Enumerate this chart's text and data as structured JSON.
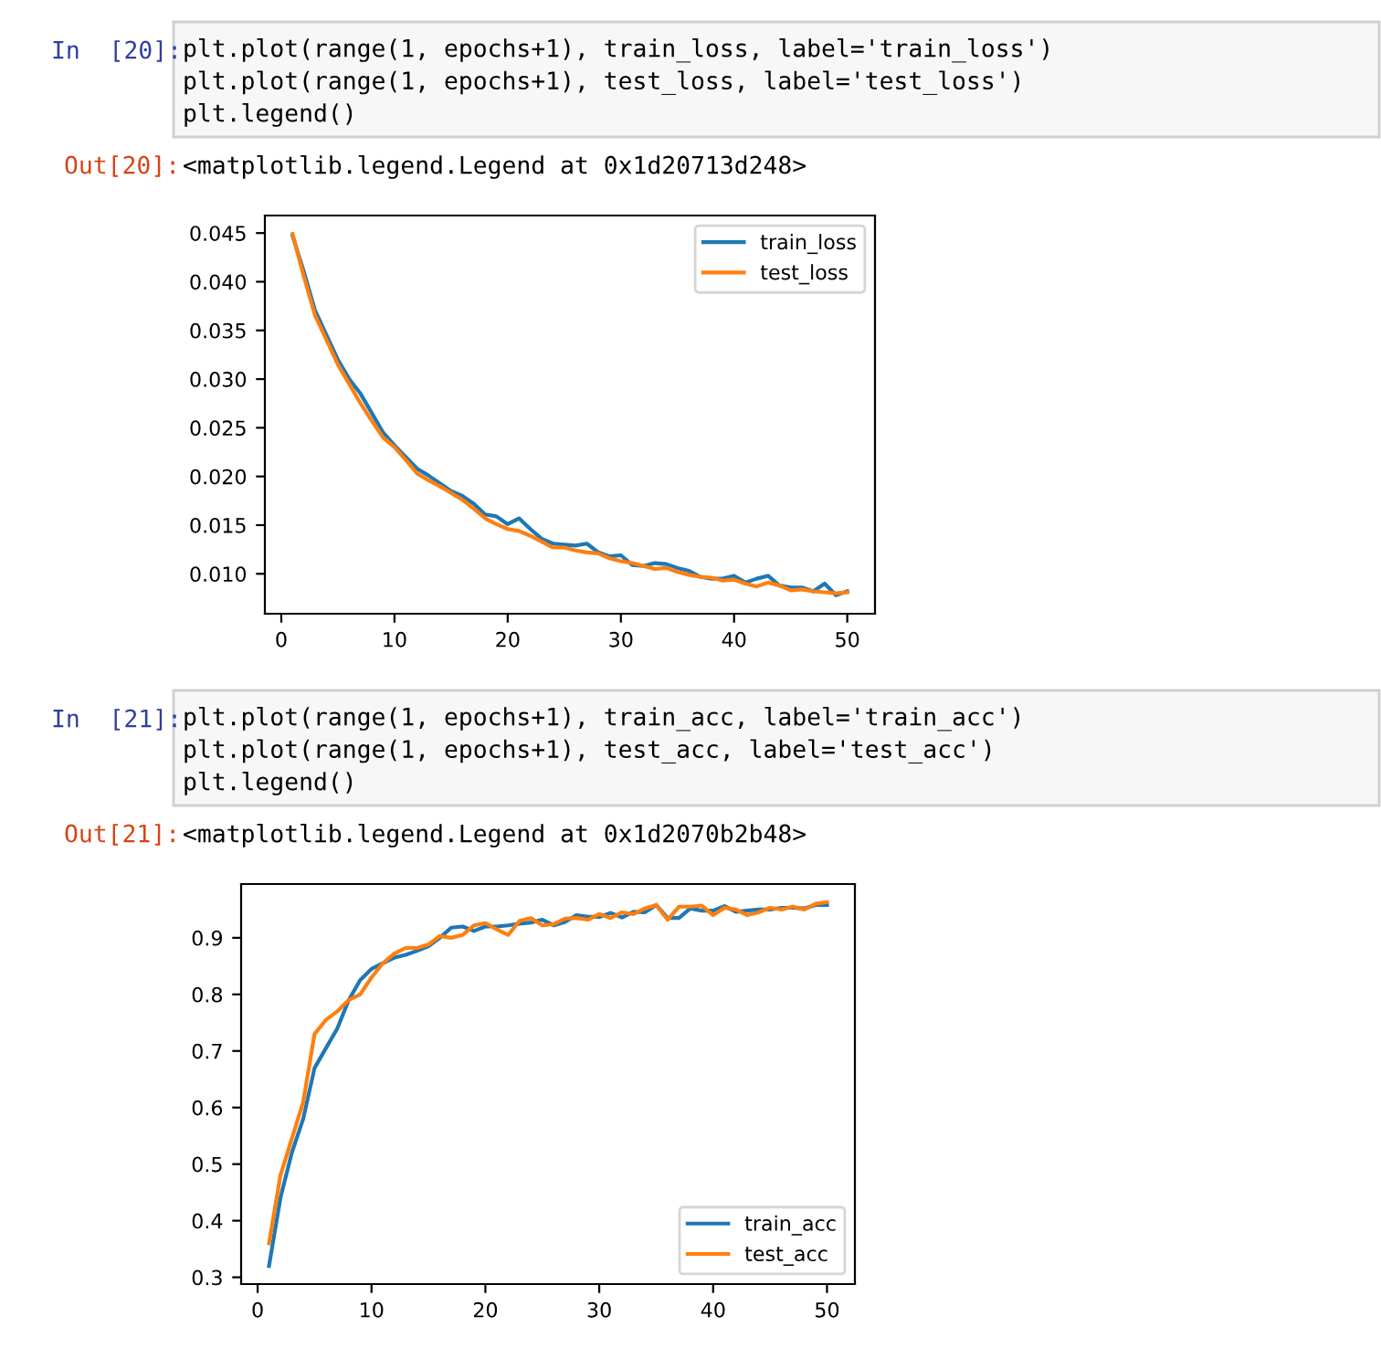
{
  "chart_data": [
    {
      "type": "line",
      "annotations": [
        "In  [20]:",
        "plt.plot(range(1, epochs+1), train_loss, label='train_loss')\nplt.plot(range(1, epochs+1), test_loss, label='test_loss')\nplt.legend()",
        "Out[20]:",
        "<matplotlib.legend.Legend at 0x1d20713d248>"
      ],
      "x": [
        1,
        2,
        3,
        4,
        5,
        6,
        7,
        8,
        9,
        10,
        11,
        12,
        13,
        14,
        15,
        16,
        17,
        18,
        19,
        20,
        21,
        22,
        23,
        24,
        25,
        26,
        27,
        28,
        29,
        30,
        31,
        32,
        33,
        34,
        35,
        36,
        37,
        38,
        39,
        40,
        41,
        42,
        43,
        44,
        45,
        46,
        47,
        48,
        49,
        50
      ],
      "xlim": [
        -1.45,
        52.45
      ],
      "xticks": [
        0,
        10,
        20,
        30,
        40,
        50
      ],
      "ylim": [
        0.0059,
        0.0468
      ],
      "yticks": [
        {
          "value": 0.01,
          "label": "0.010"
        },
        {
          "value": 0.015,
          "label": "0.015"
        },
        {
          "value": 0.02,
          "label": "0.020"
        },
        {
          "value": 0.025,
          "label": "0.025"
        },
        {
          "value": 0.03,
          "label": "0.030"
        },
        {
          "value": 0.035,
          "label": "0.035"
        },
        {
          "value": 0.04,
          "label": "0.040"
        },
        {
          "value": 0.045,
          "label": "0.045"
        }
      ],
      "legend": "top right",
      "grid": false,
      "series": [
        {
          "name": "train_loss",
          "color": "#1f77b4",
          "values": [
            0.0447,
            0.041,
            0.037,
            0.0345,
            0.032,
            0.03,
            0.0285,
            0.0265,
            0.0245,
            0.0232,
            0.022,
            0.0208,
            0.0201,
            0.0193,
            0.0185,
            0.018,
            0.0172,
            0.0161,
            0.0159,
            0.0151,
            0.0157,
            0.0146,
            0.0136,
            0.0131,
            0.013,
            0.0129,
            0.0131,
            0.0122,
            0.0118,
            0.0119,
            0.0109,
            0.0108,
            0.0111,
            0.011,
            0.0106,
            0.0103,
            0.0097,
            0.0095,
            0.0095,
            0.0098,
            0.0091,
            0.0095,
            0.0098,
            0.0088,
            0.0086,
            0.0086,
            0.0082,
            0.009,
            0.0078,
            0.0082
          ]
        },
        {
          "name": "test_loss",
          "color": "#ff7f0e",
          "values": [
            0.0449,
            0.0405,
            0.0365,
            0.034,
            0.0315,
            0.0295,
            0.0275,
            0.0257,
            0.024,
            0.023,
            0.0217,
            0.0203,
            0.0196,
            0.019,
            0.0183,
            0.0176,
            0.0167,
            0.0157,
            0.0151,
            0.0146,
            0.0144,
            0.0139,
            0.0133,
            0.0127,
            0.0127,
            0.0124,
            0.0122,
            0.0121,
            0.0116,
            0.0113,
            0.0111,
            0.0108,
            0.0105,
            0.0106,
            0.0102,
            0.0099,
            0.0097,
            0.0096,
            0.0093,
            0.0094,
            0.009,
            0.0087,
            0.0091,
            0.0088,
            0.0083,
            0.0084,
            0.0082,
            0.0081,
            0.008,
            0.0081
          ]
        }
      ]
    },
    {
      "type": "line",
      "annotations": [
        "In  [21]:",
        "plt.plot(range(1, epochs+1), train_acc, label='train_acc')\nplt.plot(range(1, epochs+1), test_acc, label='test_acc')\nplt.legend()",
        "Out[21]:",
        "<matplotlib.legend.Legend at 0x1d2070b2b48>"
      ],
      "x": [
        1,
        2,
        3,
        4,
        5,
        6,
        7,
        8,
        9,
        10,
        11,
        12,
        13,
        14,
        15,
        16,
        17,
        18,
        19,
        20,
        21,
        22,
        23,
        24,
        25,
        26,
        27,
        28,
        29,
        30,
        31,
        32,
        33,
        34,
        35,
        36,
        37,
        38,
        39,
        40,
        41,
        42,
        43,
        44,
        45,
        46,
        47,
        48,
        49,
        50
      ],
      "xlim": [
        -1.45,
        52.45
      ],
      "xticks": [
        0,
        10,
        20,
        30,
        40,
        50
      ],
      "ylim": [
        0.288,
        0.995
      ],
      "yticks": [
        0.3,
        0.4,
        0.5,
        0.6,
        0.7,
        0.8,
        0.9
      ],
      "legend": "bottom right",
      "grid": false,
      "series": [
        {
          "name": "train_acc",
          "color": "#1f77b4",
          "values": [
            0.32,
            0.44,
            0.52,
            0.58,
            0.67,
            0.705,
            0.74,
            0.79,
            0.825,
            0.845,
            0.855,
            0.865,
            0.87,
            0.877,
            0.885,
            0.9,
            0.918,
            0.92,
            0.912,
            0.92,
            0.92,
            0.922,
            0.925,
            0.927,
            0.932,
            0.922,
            0.928,
            0.94,
            0.937,
            0.937,
            0.944,
            0.936,
            0.946,
            0.945,
            0.958,
            0.935,
            0.935,
            0.952,
            0.948,
            0.948,
            0.956,
            0.946,
            0.948,
            0.95,
            0.95,
            0.953,
            0.953,
            0.952,
            0.958,
            0.958
          ]
        },
        {
          "name": "test_acc",
          "color": "#ff7f0e",
          "values": [
            0.36,
            0.48,
            0.545,
            0.61,
            0.73,
            0.755,
            0.77,
            0.79,
            0.8,
            0.83,
            0.855,
            0.872,
            0.882,
            0.882,
            0.888,
            0.903,
            0.9,
            0.905,
            0.922,
            0.926,
            0.915,
            0.905,
            0.93,
            0.935,
            0.922,
            0.924,
            0.934,
            0.935,
            0.932,
            0.942,
            0.935,
            0.945,
            0.942,
            0.952,
            0.958,
            0.932,
            0.955,
            0.955,
            0.957,
            0.94,
            0.953,
            0.95,
            0.94,
            0.945,
            0.953,
            0.95,
            0.955,
            0.95,
            0.96,
            0.963
          ]
        }
      ]
    }
  ]
}
